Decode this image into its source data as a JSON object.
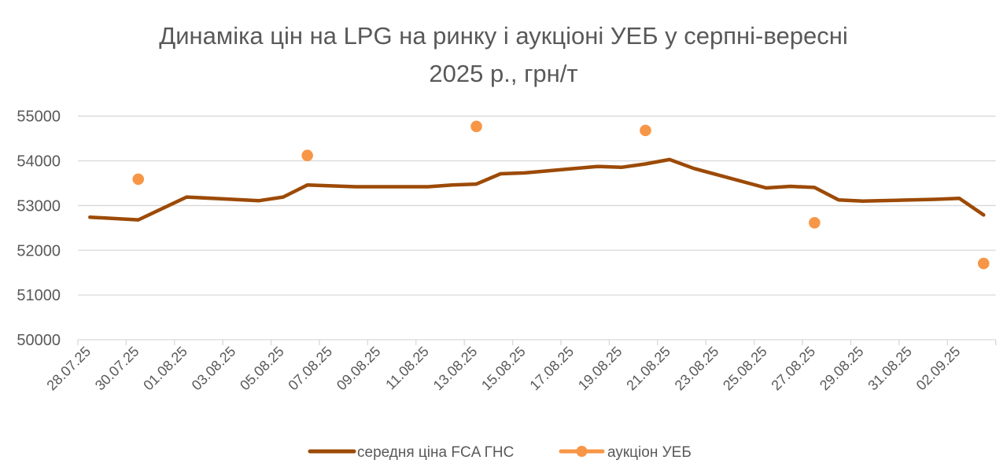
{
  "chart_data": {
    "type": "line",
    "title_line1": "Динаміка цін на LPG на ринку і аукціоні УЕБ у серпні-вересні",
    "title_line2": "2025 р., грн/т",
    "xlabel": "",
    "ylabel": "",
    "ylim": [
      50000,
      55000
    ],
    "yticks": [
      "50000",
      "51000",
      "52000",
      "53000",
      "54000",
      "55000"
    ],
    "x_start": "28.07.25",
    "x_days": 38,
    "xticks": [
      "28.07.25",
      "30.07.25",
      "01.08.25",
      "03.08.25",
      "05.08.25",
      "07.08.25",
      "09.08.25",
      "11.08.25",
      "13.08.25",
      "15.08.25",
      "17.08.25",
      "19.08.25",
      "21.08.25",
      "23.08.25",
      "25.08.25",
      "27.08.25",
      "29.08.25",
      "31.08.25",
      "02.09.25"
    ],
    "grid": true,
    "legend_position": "bottom",
    "series": [
      {
        "name": "середня ціна FCA ГНС",
        "style": "line",
        "color": "#9C4A06",
        "points": [
          {
            "date": "28.07.25",
            "day": 0,
            "value": 52740
          },
          {
            "date": "30.07.25",
            "day": 2,
            "value": 52680
          },
          {
            "date": "01.08.25",
            "day": 4,
            "value": 53190
          },
          {
            "date": "04.08.25",
            "day": 7,
            "value": 53110
          },
          {
            "date": "05.08.25",
            "day": 8,
            "value": 53190
          },
          {
            "date": "06.08.25",
            "day": 9,
            "value": 53460
          },
          {
            "date": "07.08.25",
            "day": 10,
            "value": 53440
          },
          {
            "date": "08.08.25",
            "day": 11,
            "value": 53420
          },
          {
            "date": "11.08.25",
            "day": 14,
            "value": 53420
          },
          {
            "date": "12.08.25",
            "day": 15,
            "value": 53460
          },
          {
            "date": "13.08.25",
            "day": 16,
            "value": 53480
          },
          {
            "date": "14.08.25",
            "day": 17,
            "value": 53710
          },
          {
            "date": "15.08.25",
            "day": 18,
            "value": 53730
          },
          {
            "date": "18.08.25",
            "day": 21,
            "value": 53875
          },
          {
            "date": "19.08.25",
            "day": 22,
            "value": 53855
          },
          {
            "date": "20.08.25",
            "day": 23,
            "value": 53930
          },
          {
            "date": "21.08.25",
            "day": 24,
            "value": 54030
          },
          {
            "date": "22.08.25",
            "day": 25,
            "value": 53830
          },
          {
            "date": "25.08.25",
            "day": 28,
            "value": 53395
          },
          {
            "date": "26.08.25",
            "day": 29,
            "value": 53430
          },
          {
            "date": "27.08.25",
            "day": 30,
            "value": 53405
          },
          {
            "date": "28.08.25",
            "day": 31,
            "value": 53125
          },
          {
            "date": "29.08.25",
            "day": 32,
            "value": 53100
          },
          {
            "date": "01.09.25",
            "day": 35,
            "value": 53140
          },
          {
            "date": "02.09.25",
            "day": 36,
            "value": 53160
          },
          {
            "date": "03.09.25",
            "day": 37,
            "value": 52790
          }
        ]
      },
      {
        "name": "аукціон УЕБ",
        "style": "markers",
        "color": "#F79646",
        "points": [
          {
            "date": "30.07.25",
            "day": 2,
            "value": 53590
          },
          {
            "date": "06.08.25",
            "day": 9,
            "value": 54120
          },
          {
            "date": "13.08.25",
            "day": 16,
            "value": 54770
          },
          {
            "date": "20.08.25",
            "day": 23,
            "value": 54680
          },
          {
            "date": "27.08.25",
            "day": 30,
            "value": 52615
          },
          {
            "date": "03.09.25",
            "day": 37,
            "value": 51705
          }
        ]
      }
    ]
  }
}
